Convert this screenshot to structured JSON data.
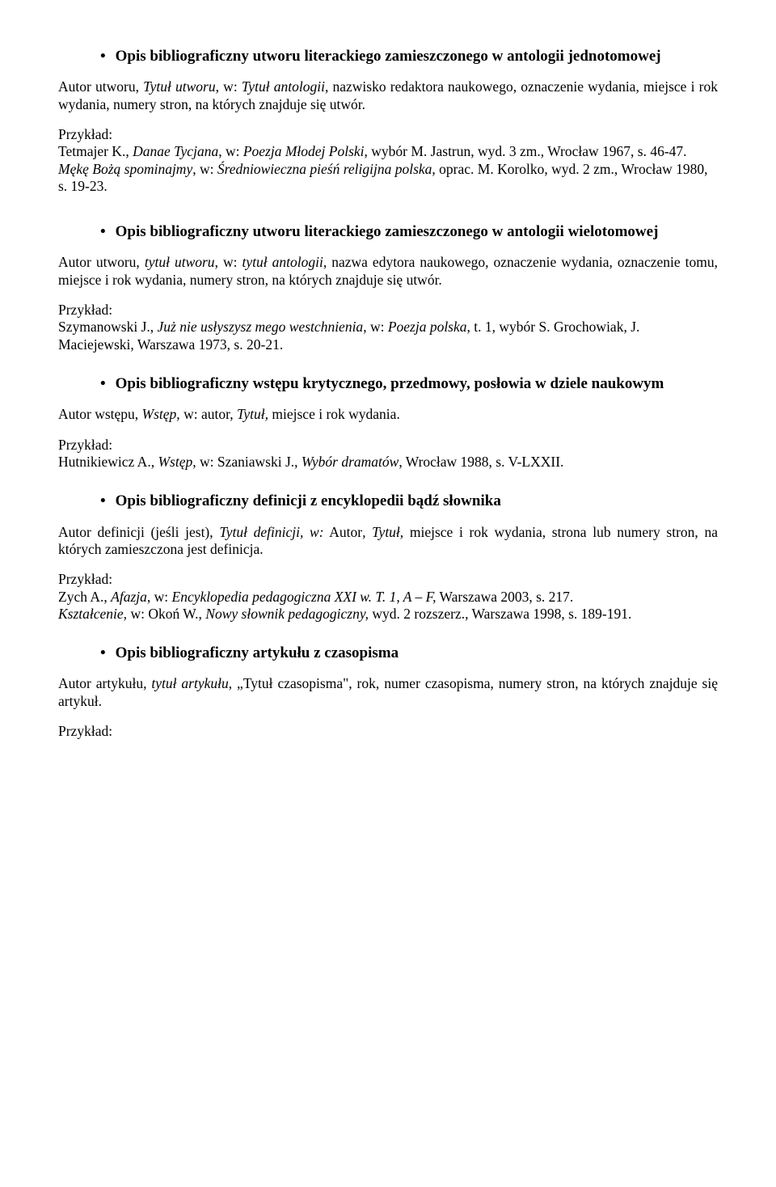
{
  "sections": [
    {
      "heading": "Opis bibliograficzny utworu literackiego zamieszczonego w antologii jednotomowej",
      "desc_html": "Autor utworu, <em>Tytuł utworu</em>, w: <em>Tytuł antologii</em>, nazwisko redaktora naukowego, oznaczenie wydania, miejsce i rok wydania, numery stron, na których znajduje się utwór.",
      "example_label": "Przykład:",
      "example_html": "Tetmajer K., <em>Danae Tycjana</em>, w: <em>Poezja Młodej Polski</em>, wybór M. Jastrun, wyd. 3 zm., Wrocław 1967, s. 46-47.<br><em>Mękę Bożą spominajmy</em>, w: <em>Średniowieczna pieśń religijna polska</em>, oprac. M. Korolko, wyd. 2 zm., Wrocław 1980, s. 19-23."
    },
    {
      "heading": "Opis bibliograficzny utworu literackiego zamieszczonego w antologii wielotomowej",
      "desc_html": "Autor utworu, <em>tytuł utworu</em>, w: <em>tytuł antologii</em>, nazwa edytora naukowego, oznaczenie wydania, oznaczenie tomu, miejsce i rok wydania, numery stron, na których znajduje się utwór.",
      "example_label": "Przykład:",
      "example_html": "Szymanowski J., <em>Już nie usłyszysz mego westchnienia</em>, w: <em>Poezja polska</em>, t. 1, wybór S. Grochowiak, J. Maciejewski, Warszawa 1973, s. 20-21."
    },
    {
      "heading": "Opis bibliograficzny wstępu krytycznego, przedmowy, posłowia w dziele naukowym",
      "desc_html": "Autor wstępu, <em>Wstęp,</em> w: autor, <em>Tytuł,</em> miejsce i rok wydania.",
      "example_label": "Przykład:",
      "example_html": "Hutnikiewicz A., <em>Wstęp,</em> w: Szaniawski J., <em>Wybór dramatów</em>, Wrocław 1988, s. V-LXXII."
    },
    {
      "heading": "Opis bibliograficzny definicji z encyklopedii bądź słownika",
      "desc_html": "Autor definicji (jeśli jest), <em>Tytuł definicji, w:</em> Autor<em>, Tytuł,</em> miejsce i rok wydania, strona lub numery stron, na których zamieszczona jest definicja.",
      "example_label": "Przykład:",
      "example_html": "Zych A., <em>Afazja,</em> w: <em>Encyklopedia pedagogiczna XXI w. T. 1, A – F,</em> Warszawa 2003, s. 217.<br><em>Kształcenie,</em> w: Okoń W., <em>Nowy słownik pedagogiczny,</em> wyd. 2 rozszerz., Warszawa 1998, s. 189-191."
    },
    {
      "heading": "Opis bibliograficzny artykułu z czasopisma",
      "desc_html": "Autor artykułu, <em>tytuł artykułu</em>, „Tytuł czasopisma\", rok, numer czasopisma, numery stron, na których znajduje się artykuł.",
      "example_label": "Przykład:",
      "example_html": ""
    }
  ],
  "bullet": "•"
}
